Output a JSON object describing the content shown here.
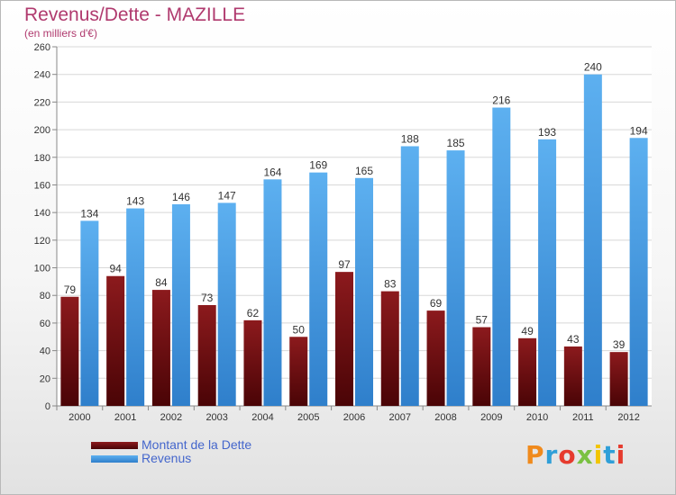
{
  "header": {
    "title": "Revenus/Dette - MAZILLE",
    "subtitle": "(en milliers d'€)"
  },
  "logo": {
    "text": "Proxiti"
  },
  "colors": {
    "dette": "#7a0f12",
    "revenus": "#4fa3e6",
    "title": "#b03a6e",
    "legend_text": "#4466cc"
  },
  "chart_data": {
    "type": "bar",
    "title": "Revenus/Dette - MAZILLE",
    "subtitle": "(en milliers d'€)",
    "categories": [
      "2000",
      "2001",
      "2002",
      "2003",
      "2004",
      "2005",
      "2006",
      "2007",
      "2008",
      "2009",
      "2010",
      "2011",
      "2012"
    ],
    "series": [
      {
        "name": "Montant de la Dette",
        "values": [
          79,
          94,
          84,
          73,
          62,
          50,
          97,
          83,
          69,
          57,
          49,
          43,
          39
        ]
      },
      {
        "name": "Revenus",
        "values": [
          134,
          143,
          146,
          147,
          164,
          169,
          165,
          188,
          185,
          216,
          193,
          240,
          194
        ]
      }
    ],
    "ylim": [
      0,
      260
    ],
    "yticks": [
      0,
      20,
      40,
      60,
      80,
      100,
      120,
      140,
      160,
      180,
      200,
      220,
      240,
      260
    ],
    "grid": true,
    "legend": "bottom-left"
  }
}
